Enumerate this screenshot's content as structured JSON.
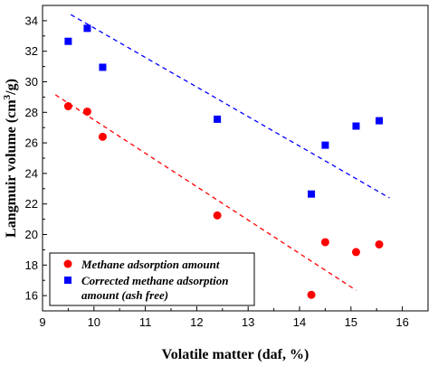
{
  "chart_data": {
    "type": "scatter",
    "xlabel": "Volatile matter (daf, %)",
    "ylabel": {
      "prefix": "Langmuir volume (cm",
      "sup": "3",
      "suffix": "/g)"
    },
    "xlim": [
      9,
      16.5
    ],
    "ylim": [
      15,
      35
    ],
    "xticks": [
      9,
      10,
      11,
      12,
      13,
      14,
      15,
      16
    ],
    "yticks": [
      16,
      18,
      20,
      22,
      24,
      26,
      28,
      30,
      32,
      34
    ],
    "grid": false,
    "legend": "bottom-left",
    "series": [
      {
        "name": "Methane adsorption amount",
        "marker": "circle",
        "color": "#ff0000",
        "points": [
          {
            "x": 9.5,
            "y": 28.4
          },
          {
            "x": 9.87,
            "y": 28.05
          },
          {
            "x": 10.17,
            "y": 26.4
          },
          {
            "x": 12.4,
            "y": 21.25
          },
          {
            "x": 14.23,
            "y": 16.05
          },
          {
            "x": 14.5,
            "y": 19.5
          },
          {
            "x": 15.1,
            "y": 18.85
          },
          {
            "x": 15.55,
            "y": 19.35
          }
        ],
        "trend": {
          "x": [
            9.25,
            15.1
          ],
          "y": [
            29.15,
            16.35
          ]
        }
      },
      {
        "name": "Corrected methane adsorption amount (ash free)",
        "legend_lines": [
          "Corrected methane adsorption",
          "amount (ash free)"
        ],
        "marker": "square",
        "color": "#0000ff",
        "points": [
          {
            "x": 9.5,
            "y": 32.65
          },
          {
            "x": 9.87,
            "y": 33.5
          },
          {
            "x": 10.17,
            "y": 30.95
          },
          {
            "x": 12.4,
            "y": 27.55
          },
          {
            "x": 14.23,
            "y": 22.65
          },
          {
            "x": 14.5,
            "y": 25.85
          },
          {
            "x": 15.1,
            "y": 27.1
          },
          {
            "x": 15.55,
            "y": 27.45
          }
        ],
        "trend": {
          "x": [
            9.55,
            15.75
          ],
          "y": [
            34.4,
            22.4
          ]
        }
      }
    ]
  }
}
